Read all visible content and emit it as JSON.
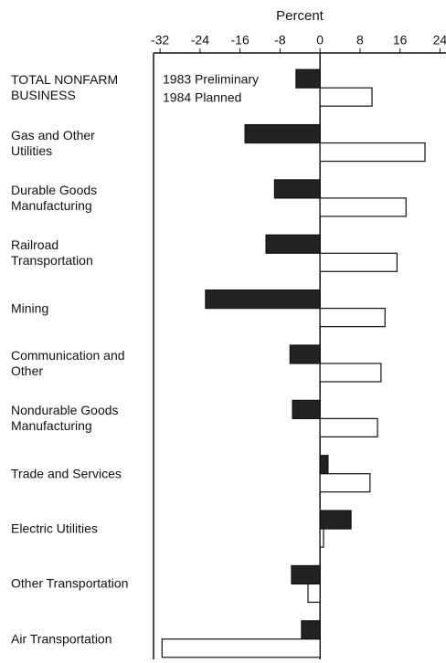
{
  "chart_data": {
    "type": "bar",
    "orientation": "horizontal",
    "title": "Percent",
    "categories": [
      "TOTAL NONFARM\nBUSINESS",
      "Gas and Other\nUtilities",
      "Durable Goods\nManufacturing",
      "Railroad\nTransportation",
      "Mining",
      "Communication and\nOther",
      "Nondurable Goods\nManufacturing",
      "Trade and Services",
      "Electric Utilities",
      "Other Transportation",
      "Air Transportation"
    ],
    "series": [
      {
        "name": "1983 Preliminary",
        "color": "#222222",
        "values": [
          -4.8,
          -15,
          -9.1,
          -10.8,
          -22.9,
          -6,
          -5.5,
          1.6,
          6.2,
          -5.7,
          -3.7
        ]
      },
      {
        "name": "1984 Planned",
        "color": "#ffffff",
        "values": [
          10.4,
          21,
          17.2,
          15.4,
          13,
          12.2,
          11.5,
          10,
          0.7,
          -2.4,
          -31.6
        ]
      }
    ],
    "xlim": [
      -33.3,
      25.2
    ],
    "xticks": [
      -32,
      -24,
      -16,
      -8,
      0,
      8,
      16,
      24
    ]
  }
}
